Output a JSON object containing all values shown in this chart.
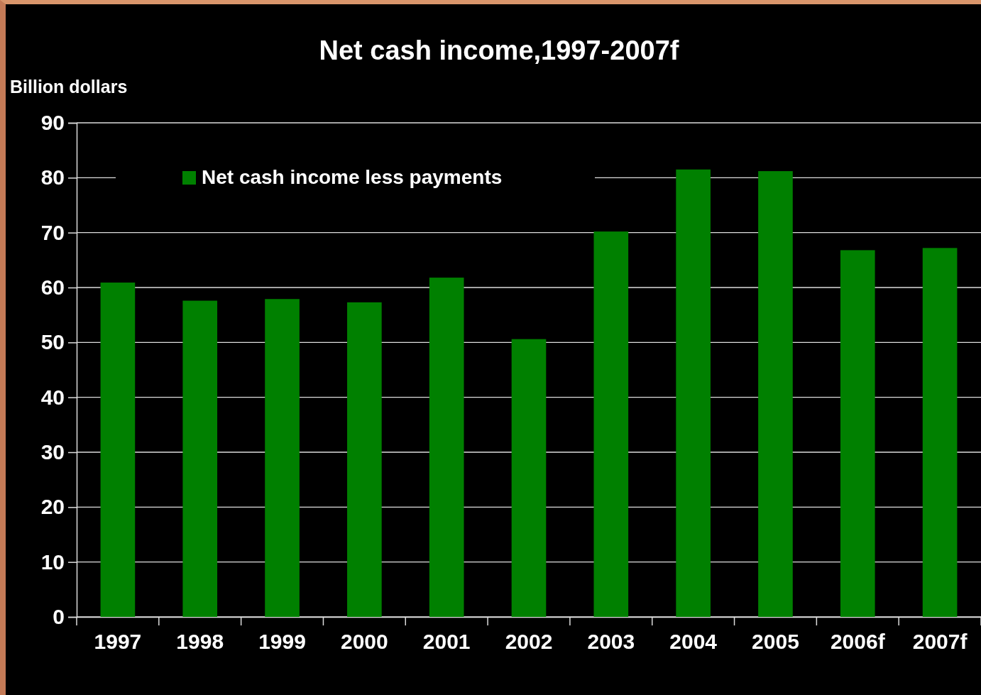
{
  "chart_data": {
    "type": "bar",
    "title": "Net cash income,1997-2007f",
    "ylabel": "Billion dollars",
    "categories": [
      "1997",
      "1998",
      "1999",
      "2000",
      "2001",
      "2002",
      "2003",
      "2004",
      "2005",
      "2006f",
      "2007f"
    ],
    "series": [
      {
        "name": "Net cash income less payments",
        "color": "#008000",
        "values": [
          60.9,
          57.6,
          57.9,
          57.3,
          61.8,
          50.6,
          70.2,
          81.5,
          81.2,
          66.8,
          67.2
        ]
      }
    ],
    "ylim": [
      0,
      90
    ],
    "yticks": [
      0,
      10,
      20,
      30,
      40,
      50,
      60,
      70,
      80,
      90
    ],
    "grid": "y",
    "legend": "top left"
  }
}
